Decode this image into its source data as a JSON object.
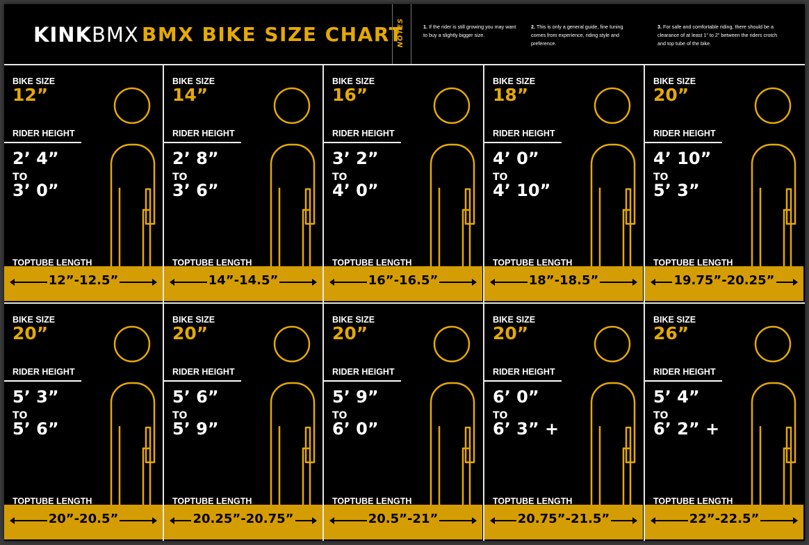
{
  "header": {
    "logo_bold": "KINK",
    "logo_light": "BMX",
    "title": "BMX BIKE SIZE CHART",
    "notes_label": "NOTES",
    "notes": [
      {
        "num": "1.",
        "text": "If the rider is still growing you may want to buy a slightly bigger size."
      },
      {
        "num": "2.",
        "text": "This is only a general guide, fine tuning comes from experience, riding style and preference."
      },
      {
        "num": "3.",
        "text": "For safe and comfortable riding, there should be a clearance of at least 1\" to 2\" between the riders crotch and top tube of the bike."
      }
    ]
  },
  "labels": {
    "bike_size": "BIKE SIZE",
    "rider_height": "RIDER HEIGHT",
    "to": "TO",
    "toptube_length": "TOPTUBE LENGTH"
  },
  "colors": {
    "accent": "#e5a905",
    "band": "#d59d04",
    "background": "#000000",
    "lines": "#e8e8e8"
  },
  "cards": [
    {
      "size": "12”",
      "from": "2’ 4”",
      "to": "3’ 0”",
      "toptube": "12”-12.5”"
    },
    {
      "size": "14”",
      "from": "2’ 8”",
      "to": "3’ 6”",
      "toptube": "14”-14.5”"
    },
    {
      "size": "16”",
      "from": "3’ 2”",
      "to": "4’ 0”",
      "toptube": "16”-16.5”"
    },
    {
      "size": "18”",
      "from": "4’ 0”",
      "to": "4’ 10”",
      "toptube": "18”-18.5”"
    },
    {
      "size": "20”",
      "from": "4’ 10”",
      "to": "5’ 3”",
      "toptube": "19.75”-20.25”"
    },
    {
      "size": "20”",
      "from": "5’ 3”",
      "to": "5’ 6”",
      "toptube": "20”-20.5”"
    },
    {
      "size": "20”",
      "from": "5’ 6”",
      "to": "5’ 9”",
      "toptube": "20.25”-20.75”"
    },
    {
      "size": "20”",
      "from": "5’ 9”",
      "to": "6’ 0”",
      "toptube": "20.5”-21”"
    },
    {
      "size": "20”",
      "from": "6’ 0”",
      "to": "6’ 3” +",
      "toptube": "20.75”-21.5”"
    },
    {
      "size": "26”",
      "from": "5’ 4”",
      "to": "6’ 2” +",
      "toptube": "22”-22.5”"
    }
  ]
}
